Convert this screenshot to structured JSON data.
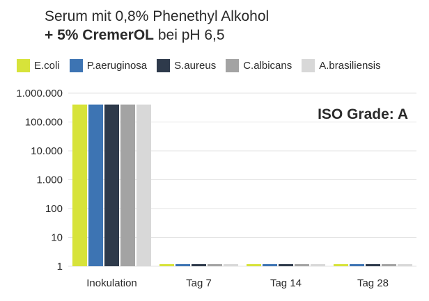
{
  "title": {
    "line1": "Serum mit 0,8% Phenethyl Alkohol",
    "line2_bold": "+ 5% CremerOL",
    "line2_rest": " bei pH 6,5"
  },
  "annotation": "ISO Grade: A",
  "colors": {
    "E.coli": "#d7e33a",
    "P.aeruginosa": "#3d74b3",
    "S.aureus": "#2e3a4b",
    "C.albicans": "#a3a3a3",
    "A.brasiliensis": "#d8d8d8"
  },
  "chart_data": {
    "type": "bar",
    "yscale": "log",
    "ylim": [
      1,
      1000000
    ],
    "yticks": [
      "1.000.000",
      "100.000",
      "10.000",
      "1.000",
      "100",
      "10",
      "1"
    ],
    "ytick_values": [
      1000000,
      100000,
      10000,
      1000,
      100,
      10,
      1
    ],
    "categories": [
      "Inokulation",
      "Tag 7",
      "Tag 14",
      "Tag 28"
    ],
    "series": [
      {
        "name": "E.coli",
        "values": [
          400000,
          1,
          1,
          1
        ]
      },
      {
        "name": "P.aeruginosa",
        "values": [
          400000,
          1,
          1,
          1
        ]
      },
      {
        "name": "S.aureus",
        "values": [
          400000,
          1,
          1,
          1
        ]
      },
      {
        "name": "C.albicans",
        "values": [
          400000,
          1,
          1,
          1
        ]
      },
      {
        "name": "A.brasiliensis",
        "values": [
          400000,
          1,
          1,
          1
        ]
      }
    ],
    "grid": true,
    "legend_position": "top"
  }
}
